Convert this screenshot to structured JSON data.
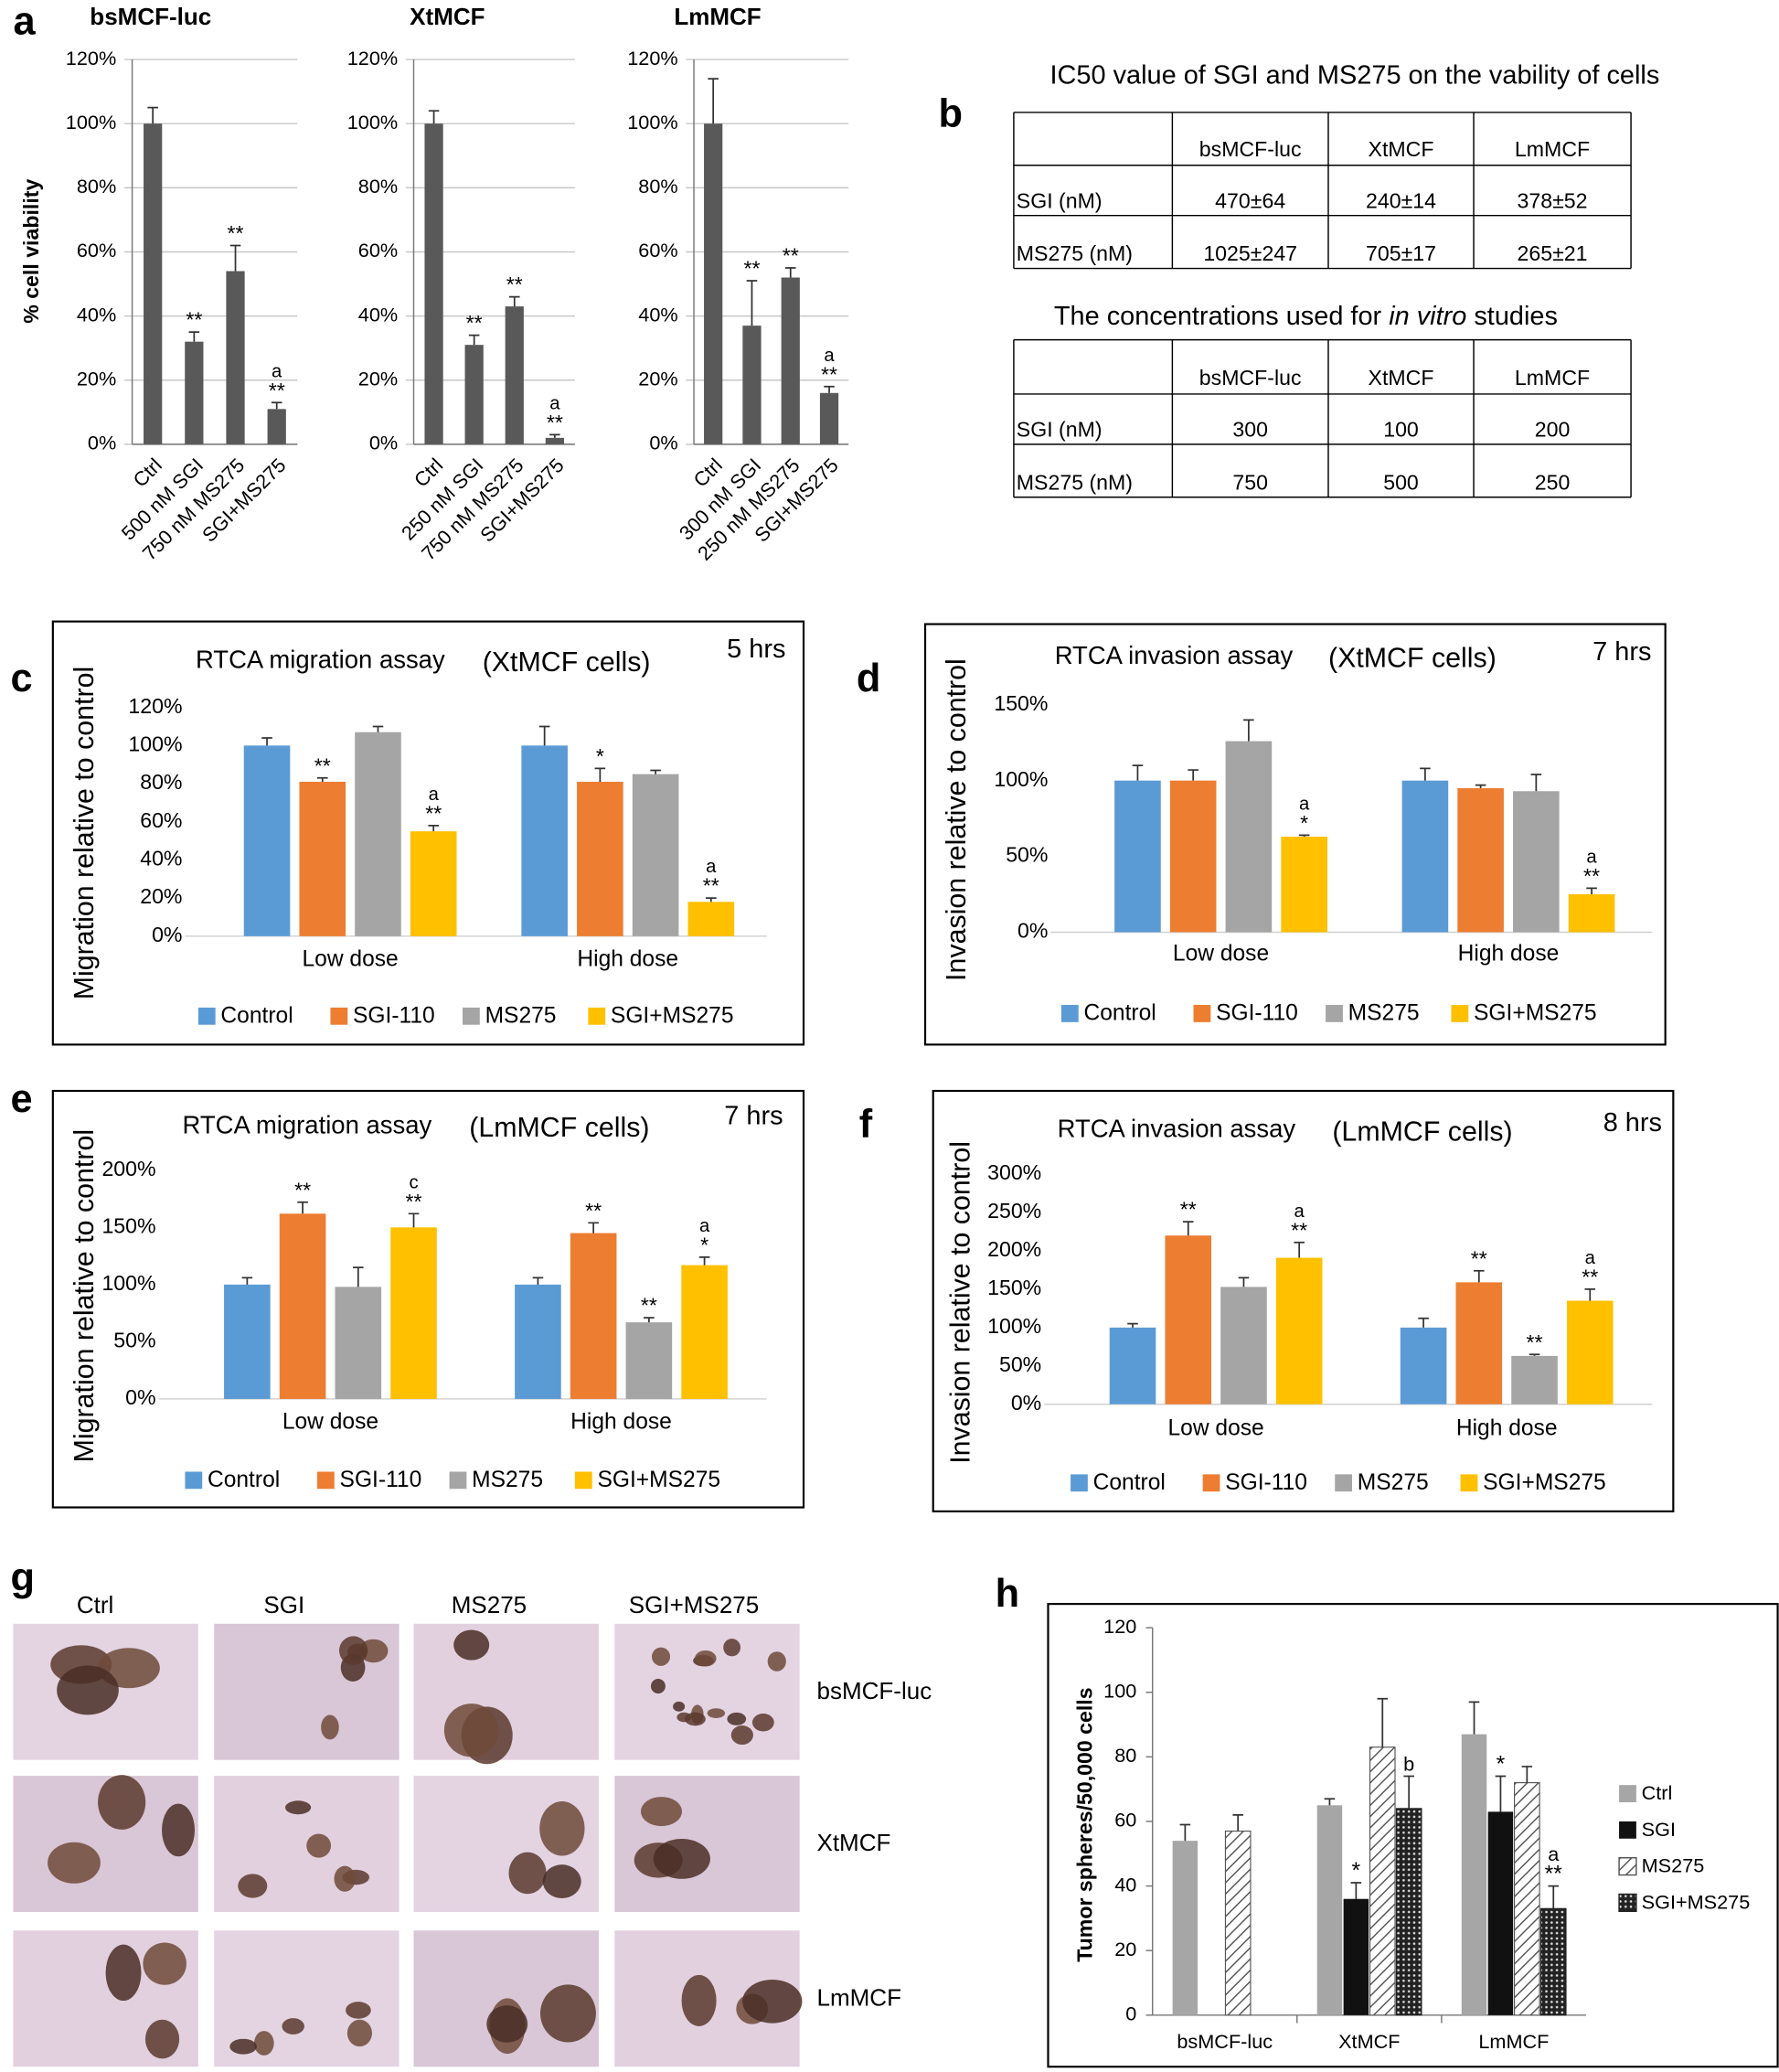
{
  "chart_data": [
    {
      "type": "bar",
      "panel": "a",
      "title": "bsMCF-luc",
      "ylabel": "% cell viability",
      "grid": true,
      "color": "#595959",
      "categories": [
        "Ctrl",
        "500 nM SGI",
        "750 nM MS275",
        "SGI+MS275"
      ],
      "values": [
        100,
        32,
        54,
        11
      ],
      "errors": [
        5,
        3,
        8,
        2
      ],
      "stars": [
        null,
        "**",
        "**",
        "**"
      ],
      "letters": [
        null,
        null,
        null,
        "a"
      ],
      "ylim": [
        0,
        120
      ],
      "yticks": [
        {
          "value": 0,
          "label": "0%"
        },
        {
          "value": 20,
          "label": "20%"
        },
        {
          "value": 40,
          "label": "40%"
        },
        {
          "value": 60,
          "label": "60%"
        },
        {
          "value": 80,
          "label": "80%"
        },
        {
          "value": 100,
          "label": "100%"
        },
        {
          "value": 120,
          "label": "120%"
        }
      ]
    },
    {
      "type": "bar",
      "title": "XtMCF",
      "grid": true,
      "color": "#595959",
      "categories": [
        "Ctrl",
        "250 nM SGI",
        "750 nM MS275",
        "SGI+MS275"
      ],
      "values": [
        100,
        31,
        43,
        2
      ],
      "errors": [
        4,
        3,
        3,
        1
      ],
      "stars": [
        null,
        "**",
        "**",
        "**"
      ],
      "letters": [
        null,
        null,
        null,
        "a"
      ],
      "ylim": [
        0,
        120
      ],
      "yticks": [
        {
          "value": 0,
          "label": "0%"
        },
        {
          "value": 20,
          "label": "20%"
        },
        {
          "value": 40,
          "label": "40%"
        },
        {
          "value": 60,
          "label": "60%"
        },
        {
          "value": 80,
          "label": "80%"
        },
        {
          "value": 100,
          "label": "100%"
        },
        {
          "value": 120,
          "label": "120%"
        }
      ]
    },
    {
      "type": "bar",
      "title": "LmMCF",
      "grid": true,
      "color": "#595959",
      "categories": [
        "Ctrl",
        "300 nM SGI",
        "250 nM MS275",
        "SGI+MS275"
      ],
      "values": [
        100,
        37,
        52,
        16
      ],
      "errors": [
        14,
        14,
        3,
        2
      ],
      "stars": [
        null,
        "**",
        "**",
        "**"
      ],
      "letters": [
        null,
        null,
        null,
        "a"
      ],
      "ylim": [
        0,
        120
      ],
      "yticks": [
        {
          "value": 0,
          "label": "0%"
        },
        {
          "value": 20,
          "label": "20%"
        },
        {
          "value": 40,
          "label": "40%"
        },
        {
          "value": 60,
          "label": "60%"
        },
        {
          "value": 80,
          "label": "80%"
        },
        {
          "value": 100,
          "label": "100%"
        },
        {
          "value": 120,
          "label": "120%"
        }
      ]
    },
    {
      "type": "bar",
      "panel": "c",
      "title": "RTCA migration assay",
      "subtitle": "(XtMCF cells)",
      "annotation": "5 hrs",
      "ylabel": "Migration relative to control",
      "grid": false,
      "categories": [
        "Low dose",
        "High dose"
      ],
      "series": [
        {
          "name": "Control",
          "color": "#5b9bd5",
          "values": [
            100,
            100
          ],
          "errors": [
            4,
            10
          ]
        },
        {
          "name": "SGI-110",
          "color": "#ed7d31",
          "values": [
            81,
            81
          ],
          "errors": [
            2,
            7
          ],
          "stars": [
            "**",
            "*"
          ]
        },
        {
          "name": "MS275",
          "color": "#a5a5a5",
          "values": [
            107,
            85
          ],
          "errors": [
            3,
            2
          ]
        },
        {
          "name": "SGI+MS275",
          "color": "#ffc000",
          "values": [
            55,
            18
          ],
          "errors": [
            3,
            2
          ],
          "stars": [
            "**",
            "**"
          ],
          "letters": [
            "a",
            "a"
          ]
        }
      ],
      "ylim": [
        0,
        120
      ],
      "yticks": [
        {
          "value": 0,
          "label": "0%"
        },
        {
          "value": 20,
          "label": "20%"
        },
        {
          "value": 40,
          "label": "40%"
        },
        {
          "value": 60,
          "label": "60%"
        },
        {
          "value": 80,
          "label": "80%"
        },
        {
          "value": 100,
          "label": "100%"
        },
        {
          "value": 120,
          "label": "120%"
        }
      ]
    },
    {
      "type": "bar",
      "panel": "d",
      "title": "RTCA invasion assay",
      "subtitle": "(XtMCF cells)",
      "annotation": "7 hrs",
      "ylabel": "Invasion relative to control",
      "grid": false,
      "categories": [
        "Low dose",
        "High dose"
      ],
      "series": [
        {
          "name": "Control",
          "color": "#5b9bd5",
          "values": [
            100,
            100
          ],
          "errors": [
            10,
            8
          ]
        },
        {
          "name": "SGI-110",
          "color": "#ed7d31",
          "values": [
            100,
            95
          ],
          "errors": [
            7,
            2
          ]
        },
        {
          "name": "MS275",
          "color": "#a5a5a5",
          "values": [
            126,
            93
          ],
          "errors": [
            14,
            11
          ]
        },
        {
          "name": "SGI+MS275",
          "color": "#ffc000",
          "values": [
            63,
            25
          ],
          "errors": [
            1,
            4
          ],
          "stars": [
            "*",
            "**"
          ],
          "letters": [
            "a",
            "a"
          ]
        }
      ],
      "ylim": [
        0,
        150
      ],
      "yticks": [
        {
          "value": 0,
          "label": "0%"
        },
        {
          "value": 50,
          "label": "50%"
        },
        {
          "value": 100,
          "label": "100%"
        },
        {
          "value": 150,
          "label": "150%"
        }
      ]
    },
    {
      "type": "bar",
      "panel": "e",
      "title": "RTCA migration assay",
      "subtitle": "(LmMCF cells)",
      "annotation": "7 hrs",
      "ylabel": "Migration relative to control",
      "grid": false,
      "categories": [
        "Low dose",
        "High dose"
      ],
      "series": [
        {
          "name": "Control",
          "color": "#5b9bd5",
          "values": [
            100,
            100
          ],
          "errors": [
            6,
            6
          ]
        },
        {
          "name": "SGI-110",
          "color": "#ed7d31",
          "values": [
            162,
            145
          ],
          "errors": [
            10,
            9
          ],
          "stars": [
            "**",
            "**"
          ]
        },
        {
          "name": "MS275",
          "color": "#a5a5a5",
          "values": [
            98,
            67
          ],
          "errors": [
            17,
            4
          ],
          "stars": [
            null,
            "**"
          ]
        },
        {
          "name": "SGI+MS275",
          "color": "#ffc000",
          "values": [
            150,
            117
          ],
          "errors": [
            12,
            7
          ],
          "stars": [
            "**",
            "*"
          ],
          "letters": [
            "c",
            "a"
          ]
        }
      ],
      "ylim": [
        0,
        200
      ],
      "yticks": [
        {
          "value": 0,
          "label": "0%"
        },
        {
          "value": 50,
          "label": "50%"
        },
        {
          "value": 100,
          "label": "100%"
        },
        {
          "value": 150,
          "label": "150%"
        },
        {
          "value": 200,
          "label": "200%"
        }
      ]
    },
    {
      "type": "bar",
      "panel": "f",
      "title": "RTCA invasion assay",
      "subtitle": "(LmMCF cells)",
      "annotation": "8 hrs",
      "ylabel": "Invasion relative to control",
      "grid": false,
      "categories": [
        "Low dose",
        "High dose"
      ],
      "series": [
        {
          "name": "Control",
          "color": "#5b9bd5",
          "values": [
            100,
            100
          ],
          "errors": [
            5,
            12
          ]
        },
        {
          "name": "SGI-110",
          "color": "#ed7d31",
          "values": [
            220,
            159
          ],
          "errors": [
            18,
            15
          ],
          "stars": [
            "**",
            "**"
          ]
        },
        {
          "name": "MS275",
          "color": "#a5a5a5",
          "values": [
            153,
            63
          ],
          "errors": [
            12,
            2
          ],
          "stars": [
            null,
            "**"
          ]
        },
        {
          "name": "SGI+MS275",
          "color": "#ffc000",
          "values": [
            191,
            135
          ],
          "errors": [
            20,
            15
          ],
          "stars": [
            "**",
            "**"
          ],
          "letters": [
            "a",
            "a"
          ]
        }
      ],
      "ylim": [
        0,
        300
      ],
      "yticks": [
        {
          "value": 0,
          "label": "0%"
        },
        {
          "value": 50,
          "label": "50%"
        },
        {
          "value": 100,
          "label": "100%"
        },
        {
          "value": 150,
          "label": "150%"
        },
        {
          "value": 200,
          "label": "200%"
        },
        {
          "value": 250,
          "label": "250%"
        },
        {
          "value": 300,
          "label": "300%"
        }
      ]
    },
    {
      "type": "bar",
      "panel": "h",
      "ylabel": "Tumor spheres/50,000 cells",
      "grid": false,
      "categories": [
        "bsMCF-luc",
        "XtMCF",
        "LmMCF"
      ],
      "series": [
        {
          "name": "Ctrl",
          "color": "#a6a6a6",
          "values": [
            54,
            65,
            87
          ],
          "errors": [
            5,
            2,
            10
          ]
        },
        {
          "name": "SGI",
          "color": "#111111",
          "values": [
            null,
            36,
            63
          ],
          "errors": [
            null,
            5,
            11
          ],
          "stars": [
            null,
            "*",
            "*"
          ]
        },
        {
          "name": "MS275",
          "color": "#555555",
          "pattern": "hatch",
          "values": [
            57,
            83,
            72
          ],
          "errors": [
            5,
            15,
            5
          ]
        },
        {
          "name": "SGI+MS275",
          "color": "#222222",
          "pattern": "dots",
          "values": [
            null,
            64,
            33
          ],
          "errors": [
            null,
            10,
            7
          ],
          "stars": [
            null,
            null,
            "**"
          ],
          "letters": [
            null,
            "b",
            "a"
          ]
        }
      ],
      "ylim": [
        0,
        120
      ],
      "yticks": [
        0,
        20,
        40,
        60,
        80,
        100,
        120
      ]
    }
  ],
  "tables": [
    {
      "panel": "b",
      "title": "IC50 value of SGI and MS275 on the vability of cells",
      "header": [
        "bsMCF-luc",
        "XtMCF",
        "LmMCF"
      ],
      "rows": [
        [
          "SGI (nM)",
          "470±64",
          "240±14",
          "378±52"
        ],
        [
          "MS275 (nM)",
          "1025±247",
          "705±17",
          "265±21"
        ]
      ]
    },
    {
      "title_parts": [
        "The concentrations used for ",
        "in vitro",
        " studies"
      ],
      "header": [
        "bsMCF-luc",
        "XtMCF",
        "LmMCF"
      ],
      "rows": [
        [
          "SGI (nM)",
          "300",
          "100",
          "200"
        ],
        [
          "MS275 (nM)",
          "750",
          "500",
          "250"
        ]
      ]
    }
  ],
  "image_grid": {
    "panel": "g",
    "columns": [
      "Ctrl",
      "SGI",
      "MS275",
      "SGI+MS275"
    ],
    "rows": [
      "bsMCF-luc",
      "XtMCF",
      "LmMCF"
    ]
  }
}
